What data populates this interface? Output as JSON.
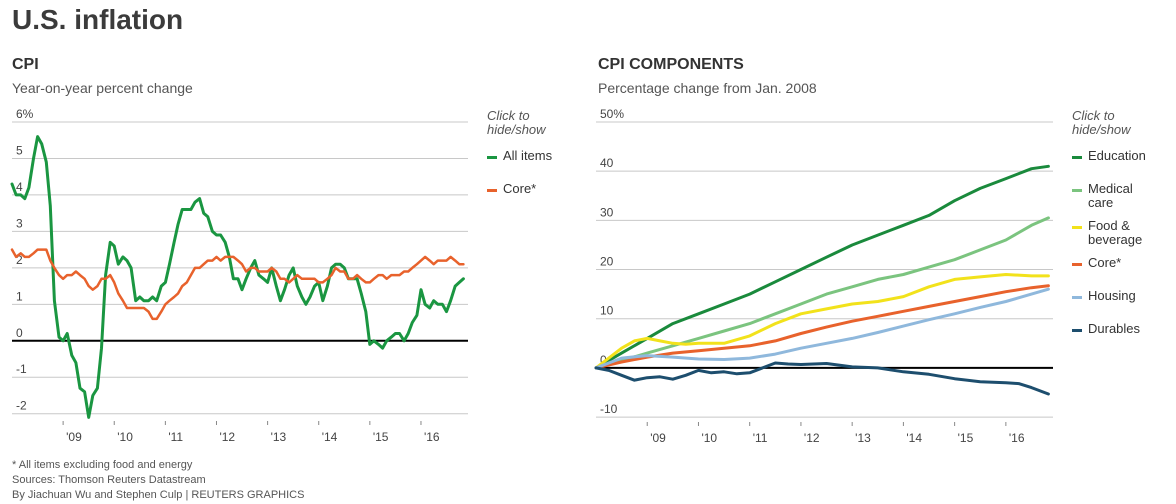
{
  "title": "U.S. inflation",
  "legend_hint": "Click to\nhide/show",
  "footer": {
    "note": "* All items excluding food and energy",
    "sources": "Sources: Thomson Reuters Datastream",
    "credit": "By Jiachuan Wu and Stephen Culp | REUTERS GRAPHICS"
  },
  "chart_data": [
    {
      "type": "line",
      "title": "CPI",
      "subtitle": "Year-on-year percent change",
      "ylim": [
        -2.2,
        6
      ],
      "yticks": [
        -2,
        -1,
        0,
        1,
        2,
        3,
        4,
        5,
        6
      ],
      "ytick_labels": [
        "-2",
        "-1",
        "0",
        "1",
        "2",
        "3",
        "4",
        "5",
        "6%"
      ],
      "xlim": [
        2008.0,
        2016.92
      ],
      "xticks": [
        2009,
        2010,
        2011,
        2012,
        2013,
        2014,
        2015,
        2016
      ],
      "xtick_labels": [
        "'09",
        "'10",
        "'11",
        "'12",
        "'13",
        "'14",
        "'15",
        "'16"
      ],
      "grid": true,
      "legend_position": "right",
      "series": [
        {
          "name": "All items",
          "color": "#1a9641",
          "width": 3,
          "x": [
            2008.0,
            2008.08,
            2008.17,
            2008.25,
            2008.33,
            2008.42,
            2008.5,
            2008.58,
            2008.67,
            2008.75,
            2008.83,
            2008.92,
            2009.0,
            2009.08,
            2009.17,
            2009.25,
            2009.33,
            2009.42,
            2009.5,
            2009.58,
            2009.67,
            2009.75,
            2009.83,
            2009.92,
            2010.0,
            2010.08,
            2010.17,
            2010.25,
            2010.33,
            2010.42,
            2010.5,
            2010.58,
            2010.67,
            2010.75,
            2010.83,
            2010.92,
            2011.0,
            2011.08,
            2011.17,
            2011.25,
            2011.33,
            2011.42,
            2011.5,
            2011.58,
            2011.67,
            2011.75,
            2011.83,
            2011.92,
            2012.0,
            2012.08,
            2012.17,
            2012.25,
            2012.33,
            2012.42,
            2012.5,
            2012.58,
            2012.67,
            2012.75,
            2012.83,
            2012.92,
            2013.0,
            2013.08,
            2013.17,
            2013.25,
            2013.33,
            2013.42,
            2013.5,
            2013.58,
            2013.67,
            2013.75,
            2013.83,
            2013.92,
            2014.0,
            2014.08,
            2014.17,
            2014.25,
            2014.33,
            2014.42,
            2014.5,
            2014.58,
            2014.67,
            2014.75,
            2014.83,
            2014.92,
            2015.0,
            2015.08,
            2015.17,
            2015.25,
            2015.33,
            2015.42,
            2015.5,
            2015.58,
            2015.67,
            2015.75,
            2015.83,
            2015.92,
            2016.0,
            2016.08,
            2016.17,
            2016.25,
            2016.33,
            2016.42,
            2016.5,
            2016.58,
            2016.67,
            2016.75,
            2016.83
          ],
          "y": [
            4.3,
            4.0,
            4.0,
            3.9,
            4.2,
            5.0,
            5.6,
            5.4,
            4.9,
            3.7,
            1.1,
            0.1,
            0.0,
            0.2,
            -0.4,
            -0.6,
            -1.3,
            -1.4,
            -2.1,
            -1.5,
            -1.3,
            -0.2,
            1.8,
            2.7,
            2.6,
            2.1,
            2.3,
            2.2,
            2.0,
            1.1,
            1.2,
            1.1,
            1.1,
            1.2,
            1.1,
            1.5,
            1.6,
            2.1,
            2.7,
            3.2,
            3.6,
            3.6,
            3.6,
            3.8,
            3.9,
            3.5,
            3.4,
            3.0,
            2.9,
            2.9,
            2.7,
            2.3,
            1.7,
            1.7,
            1.4,
            1.7,
            2.0,
            2.2,
            1.8,
            1.7,
            1.6,
            2.0,
            1.5,
            1.1,
            1.4,
            1.8,
            2.0,
            1.5,
            1.2,
            1.0,
            1.2,
            1.5,
            1.6,
            1.1,
            1.5,
            2.0,
            2.1,
            2.1,
            2.0,
            1.7,
            1.7,
            1.7,
            1.3,
            0.8,
            -0.1,
            0.0,
            -0.1,
            -0.2,
            0.0,
            0.1,
            0.2,
            0.2,
            0.0,
            0.2,
            0.5,
            0.7,
            1.4,
            1.0,
            0.9,
            1.1,
            1.0,
            1.0,
            0.8,
            1.1,
            1.5,
            1.6,
            1.7
          ]
        },
        {
          "name": "Core*",
          "color": "#e8622c",
          "width": 2.5,
          "x": [
            2008.0,
            2008.08,
            2008.17,
            2008.25,
            2008.33,
            2008.42,
            2008.5,
            2008.58,
            2008.67,
            2008.75,
            2008.83,
            2008.92,
            2009.0,
            2009.08,
            2009.17,
            2009.25,
            2009.33,
            2009.42,
            2009.5,
            2009.58,
            2009.67,
            2009.75,
            2009.83,
            2009.92,
            2010.0,
            2010.08,
            2010.17,
            2010.25,
            2010.33,
            2010.42,
            2010.5,
            2010.58,
            2010.67,
            2010.75,
            2010.83,
            2010.92,
            2011.0,
            2011.08,
            2011.17,
            2011.25,
            2011.33,
            2011.42,
            2011.5,
            2011.58,
            2011.67,
            2011.75,
            2011.83,
            2011.92,
            2012.0,
            2012.08,
            2012.17,
            2012.25,
            2012.33,
            2012.42,
            2012.5,
            2012.58,
            2012.67,
            2012.75,
            2012.83,
            2012.92,
            2013.0,
            2013.08,
            2013.17,
            2013.25,
            2013.33,
            2013.42,
            2013.5,
            2013.58,
            2013.67,
            2013.75,
            2013.83,
            2013.92,
            2014.0,
            2014.08,
            2014.17,
            2014.25,
            2014.33,
            2014.42,
            2014.5,
            2014.58,
            2014.67,
            2014.75,
            2014.83,
            2014.92,
            2015.0,
            2015.08,
            2015.17,
            2015.25,
            2015.33,
            2015.42,
            2015.5,
            2015.58,
            2015.67,
            2015.75,
            2015.83,
            2015.92,
            2016.0,
            2016.08,
            2016.17,
            2016.25,
            2016.33,
            2016.42,
            2016.5,
            2016.58,
            2016.67,
            2016.75,
            2016.83
          ],
          "y": [
            2.5,
            2.3,
            2.4,
            2.3,
            2.3,
            2.4,
            2.5,
            2.5,
            2.5,
            2.2,
            2.0,
            1.8,
            1.7,
            1.8,
            1.8,
            1.9,
            1.8,
            1.7,
            1.5,
            1.4,
            1.5,
            1.7,
            1.7,
            1.8,
            1.6,
            1.3,
            1.1,
            0.9,
            0.9,
            0.9,
            0.9,
            0.9,
            0.8,
            0.6,
            0.6,
            0.8,
            1.0,
            1.1,
            1.2,
            1.3,
            1.5,
            1.6,
            1.8,
            2.0,
            2.0,
            2.1,
            2.2,
            2.2,
            2.3,
            2.2,
            2.3,
            2.3,
            2.3,
            2.2,
            2.1,
            1.9,
            2.0,
            2.0,
            1.9,
            1.9,
            1.9,
            2.0,
            1.9,
            1.7,
            1.7,
            1.6,
            1.7,
            1.8,
            1.7,
            1.7,
            1.7,
            1.7,
            1.6,
            1.6,
            1.7,
            1.8,
            2.0,
            1.9,
            1.9,
            1.7,
            1.7,
            1.8,
            1.7,
            1.6,
            1.6,
            1.7,
            1.8,
            1.8,
            1.7,
            1.8,
            1.8,
            1.8,
            1.9,
            1.9,
            2.0,
            2.1,
            2.2,
            2.3,
            2.2,
            2.1,
            2.2,
            2.2,
            2.2,
            2.3,
            2.2,
            2.1,
            2.1
          ]
        }
      ]
    },
    {
      "type": "line",
      "title": "CPI COMPONENTS",
      "subtitle": "Percentage change from Jan. 2008",
      "ylim": [
        -11,
        50
      ],
      "yticks": [
        -10,
        0,
        10,
        20,
        30,
        40,
        50
      ],
      "ytick_labels": [
        "-10",
        "0",
        "10",
        "20",
        "30",
        "40",
        "50%"
      ],
      "xlim": [
        2008.0,
        2016.92
      ],
      "xticks": [
        2009,
        2010,
        2011,
        2012,
        2013,
        2014,
        2015,
        2016
      ],
      "xtick_labels": [
        "'09",
        "'10",
        "'11",
        "'12",
        "'13",
        "'14",
        "'15",
        "'16"
      ],
      "grid": true,
      "legend_position": "right",
      "series": [
        {
          "name": "Education",
          "color": "#1a8a3c",
          "width": 3,
          "x": [
            2008.0,
            2008.5,
            2009.0,
            2009.5,
            2010.0,
            2010.5,
            2011.0,
            2011.5,
            2012.0,
            2012.5,
            2013.0,
            2013.5,
            2014.0,
            2014.5,
            2015.0,
            2015.5,
            2016.0,
            2016.5,
            2016.83
          ],
          "y": [
            0,
            3,
            6,
            9,
            11,
            13,
            15,
            17.5,
            20,
            22.5,
            25,
            27,
            29,
            31,
            34,
            36.5,
            38.5,
            40.5,
            41
          ]
        },
        {
          "name": "Medical care",
          "label": "Medical\ncare",
          "color": "#7bc47f",
          "width": 3,
          "x": [
            2008.0,
            2008.5,
            2009.0,
            2009.5,
            2010.0,
            2010.5,
            2011.0,
            2011.5,
            2012.0,
            2012.5,
            2013.0,
            2013.5,
            2014.0,
            2014.5,
            2015.0,
            2015.5,
            2016.0,
            2016.5,
            2016.83
          ],
          "y": [
            0,
            1.5,
            3,
            4.5,
            6,
            7.5,
            9,
            11,
            13,
            15,
            16.5,
            18,
            19,
            20.5,
            22,
            24,
            26,
            29,
            30.5
          ]
        },
        {
          "name": "Food & beverage",
          "label": "Food &\nbeverage",
          "color": "#f2e21b",
          "width": 3,
          "x": [
            2008.0,
            2008.25,
            2008.5,
            2008.75,
            2009.0,
            2009.25,
            2009.5,
            2009.75,
            2010.0,
            2010.5,
            2011.0,
            2011.5,
            2012.0,
            2012.5,
            2013.0,
            2013.5,
            2014.0,
            2014.5,
            2015.0,
            2015.5,
            2016.0,
            2016.5,
            2016.83
          ],
          "y": [
            0,
            2,
            4,
            5.5,
            6,
            5.5,
            5,
            4.8,
            5,
            5,
            6.5,
            9,
            11,
            12,
            13,
            13.5,
            14.5,
            16.5,
            18,
            18.5,
            19,
            18.7,
            18.7
          ]
        },
        {
          "name": "Core*",
          "color": "#e8622c",
          "width": 3,
          "x": [
            2008.0,
            2008.5,
            2009.0,
            2009.5,
            2010.0,
            2010.5,
            2011.0,
            2011.5,
            2012.0,
            2012.5,
            2013.0,
            2013.5,
            2014.0,
            2014.5,
            2015.0,
            2015.5,
            2016.0,
            2016.5,
            2016.83
          ],
          "y": [
            0,
            1.2,
            2.2,
            3.0,
            3.5,
            4.0,
            4.5,
            5.5,
            7.0,
            8.3,
            9.5,
            10.5,
            11.5,
            12.5,
            13.5,
            14.5,
            15.5,
            16.3,
            16.7
          ]
        },
        {
          "name": "Housing",
          "color": "#8fb8dc",
          "width": 3,
          "x": [
            2008.0,
            2008.5,
            2009.0,
            2009.5,
            2010.0,
            2010.5,
            2011.0,
            2011.5,
            2012.0,
            2012.5,
            2013.0,
            2013.5,
            2014.0,
            2014.5,
            2015.0,
            2015.5,
            2016.0,
            2016.5,
            2016.83
          ],
          "y": [
            0,
            2,
            2.5,
            2.2,
            1.8,
            1.7,
            2.0,
            2.8,
            4.0,
            5.0,
            6.0,
            7.2,
            8.5,
            9.8,
            11.0,
            12.3,
            13.5,
            15.0,
            16.0
          ]
        },
        {
          "name": "Durables",
          "color": "#1d4e6e",
          "width": 3,
          "x": [
            2008.0,
            2008.25,
            2008.5,
            2008.75,
            2009.0,
            2009.25,
            2009.5,
            2009.75,
            2010.0,
            2010.25,
            2010.5,
            2010.75,
            2011.0,
            2011.25,
            2011.5,
            2011.75,
            2012.0,
            2012.5,
            2013.0,
            2013.5,
            2014.0,
            2014.5,
            2015.0,
            2015.5,
            2016.0,
            2016.25,
            2016.5,
            2016.83
          ],
          "y": [
            0,
            -0.5,
            -1.5,
            -2.5,
            -2.0,
            -1.8,
            -2.3,
            -1.5,
            -0.5,
            -1.0,
            -0.8,
            -1.2,
            -1.0,
            0.0,
            1.0,
            0.8,
            0.7,
            0.9,
            0.2,
            0.0,
            -0.8,
            -1.3,
            -2.2,
            -2.8,
            -3.0,
            -3.2,
            -4.0,
            -5.3
          ]
        }
      ]
    }
  ]
}
